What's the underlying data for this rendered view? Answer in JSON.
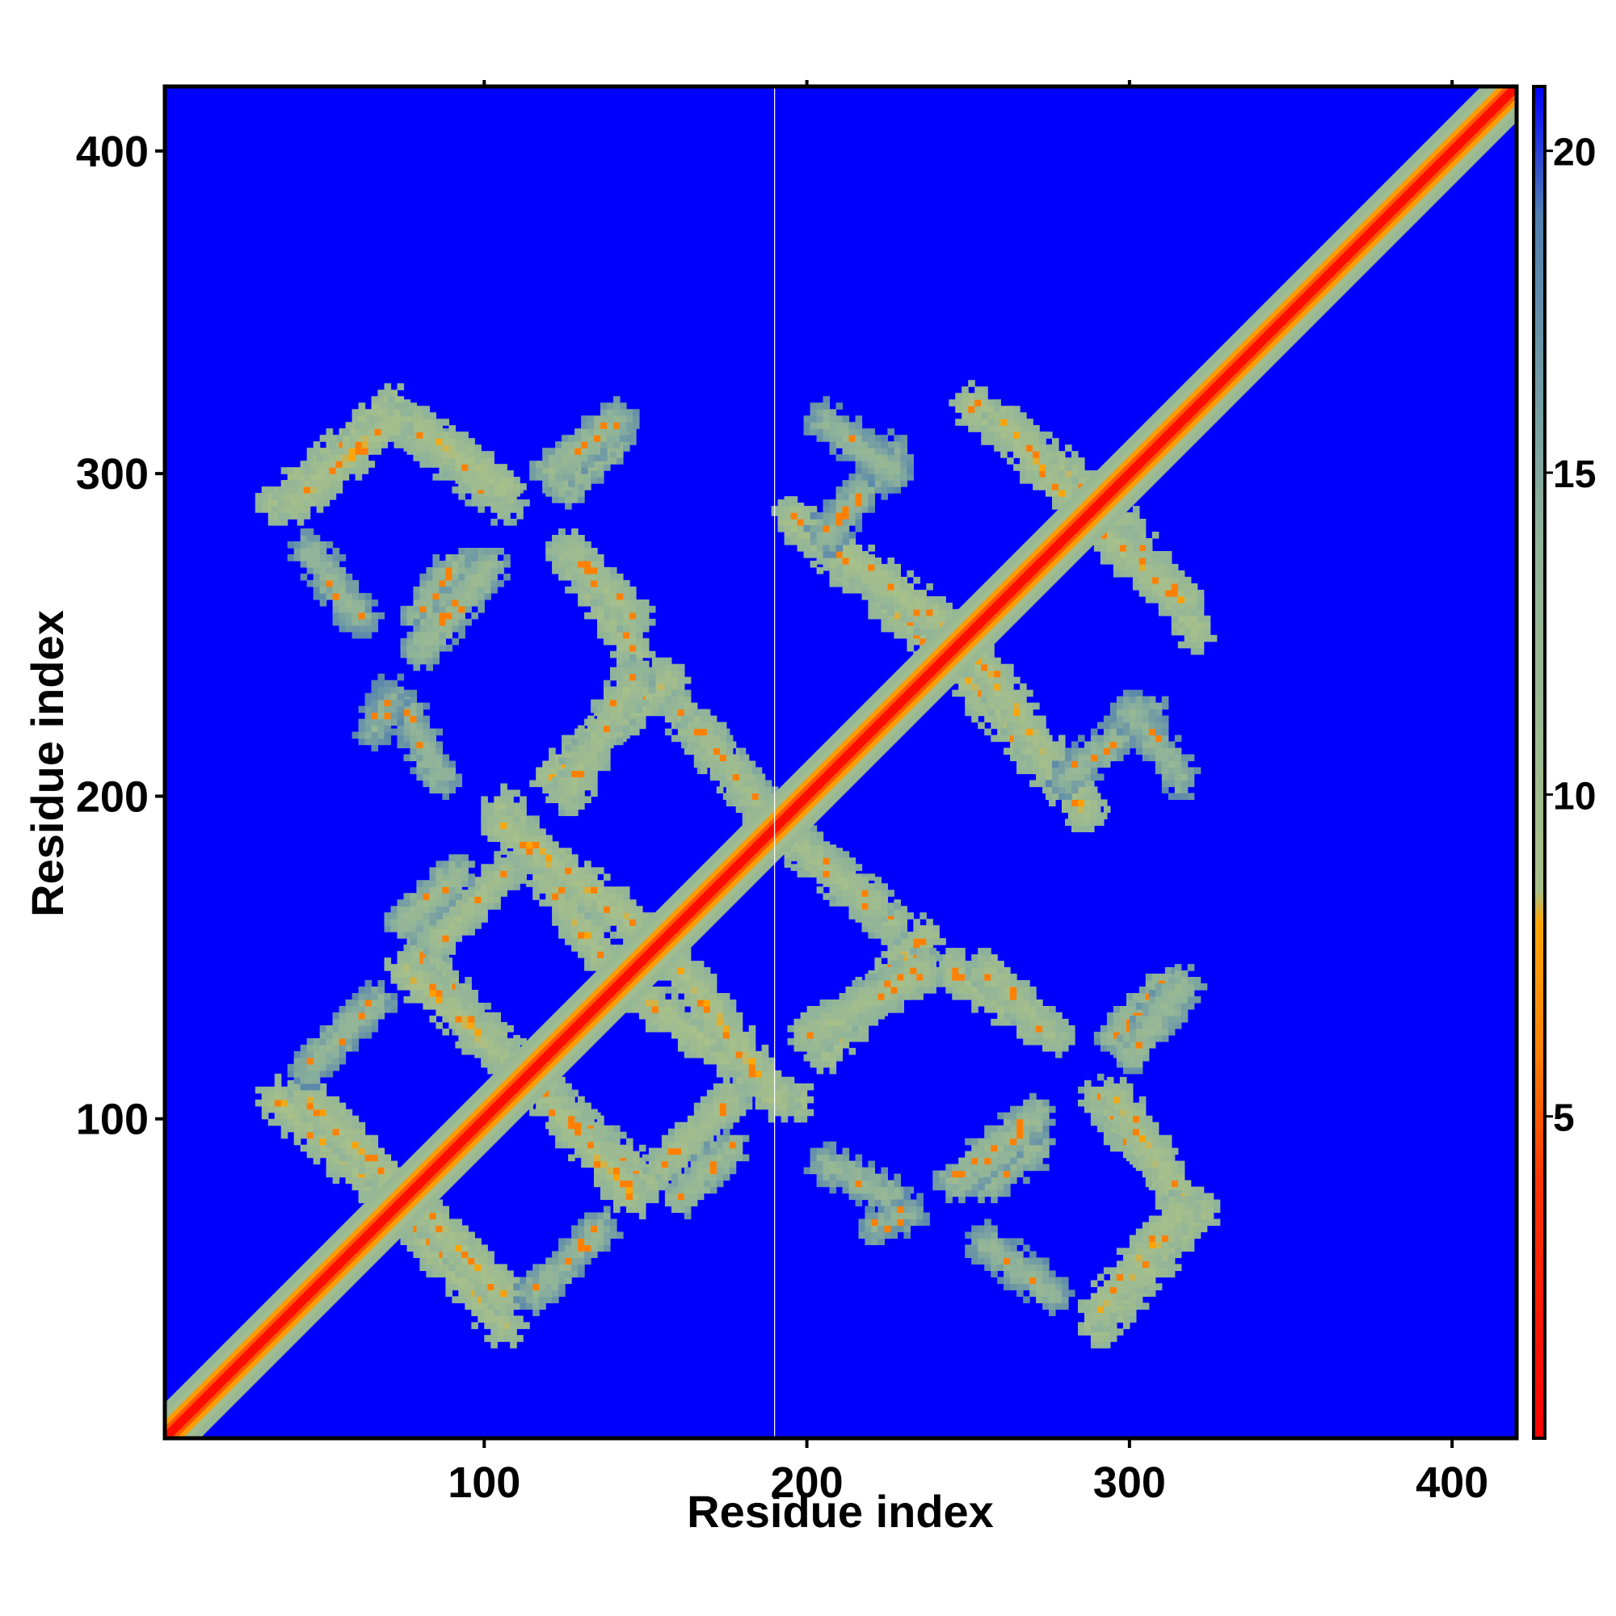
{
  "chart_data": {
    "type": "heatmap",
    "title": "",
    "xlabel": "Residue index",
    "ylabel": "Residue index",
    "xlim": [
      1,
      420
    ],
    "ylim": [
      1,
      420
    ],
    "x_ticks": [
      100,
      200,
      300,
      400
    ],
    "y_ticks": [
      100,
      200,
      300,
      400
    ],
    "x_tick_labels": [
      "100",
      "200",
      "300",
      "400"
    ],
    "y_tick_labels": [
      "100",
      "200",
      "300",
      "400"
    ],
    "colorbar": {
      "min": 0,
      "max": 21,
      "ticks": [
        5,
        10,
        15,
        20
      ],
      "tick_labels": [
        "5",
        "10",
        "15",
        "20"
      ],
      "color_stops": [
        {
          "value": 0,
          "color": "#ff0000"
        },
        {
          "value": 4,
          "color": "#ff3300"
        },
        {
          "value": 6,
          "color": "#ff8000"
        },
        {
          "value": 8,
          "color": "#ffa500"
        },
        {
          "value": 8.5,
          "color": "#a8c08a"
        },
        {
          "value": 14,
          "color": "#8fb39a"
        },
        {
          "value": 19,
          "color": "#4f7fb0"
        },
        {
          "value": 21,
          "color": "#0000ff"
        }
      ]
    },
    "background_value": 21,
    "gap_column": 190,
    "diagonal": {
      "from": 1,
      "to": 420,
      "core_value": 1,
      "halfwidth": 11
    },
    "contact_bands": [
      {
        "x1": 35,
        "y1": 105,
        "x2": 75,
        "y2": 70,
        "value": 9
      },
      {
        "x1": 75,
        "y1": 75,
        "x2": 105,
        "y2": 45,
        "value": 9
      },
      {
        "x1": 95,
        "y1": 130,
        "x2": 130,
        "y2": 95,
        "value": 9
      },
      {
        "x1": 130,
        "y1": 95,
        "x2": 150,
        "y2": 80,
        "value": 10
      },
      {
        "x1": 155,
        "y1": 85,
        "x2": 175,
        "y2": 105,
        "value": 10
      },
      {
        "x1": 75,
        "y1": 145,
        "x2": 115,
        "y2": 110,
        "value": 9
      },
      {
        "x1": 150,
        "y1": 135,
        "x2": 195,
        "y2": 105,
        "value": 9
      },
      {
        "x1": 75,
        "y1": 160,
        "x2": 90,
        "y2": 175,
        "value": 12
      },
      {
        "x1": 105,
        "y1": 190,
        "x2": 145,
        "y2": 160,
        "value": 9
      },
      {
        "x1": 120,
        "y1": 205,
        "x2": 155,
        "y2": 235,
        "value": 9
      },
      {
        "x1": 160,
        "y1": 225,
        "x2": 185,
        "y2": 195,
        "value": 10
      },
      {
        "x1": 195,
        "y1": 185,
        "x2": 220,
        "y2": 165,
        "value": 10
      },
      {
        "x1": 200,
        "y1": 125,
        "x2": 235,
        "y2": 145,
        "value": 9
      },
      {
        "x1": 245,
        "y1": 145,
        "x2": 275,
        "y2": 125,
        "value": 9
      },
      {
        "x1": 295,
        "y1": 125,
        "x2": 310,
        "y2": 140,
        "value": 12
      },
      {
        "x1": 245,
        "y1": 240,
        "x2": 285,
        "y2": 195,
        "value": 9
      },
      {
        "x1": 195,
        "y1": 285,
        "x2": 245,
        "y2": 250,
        "value": 9
      },
      {
        "x1": 250,
        "y1": 320,
        "x2": 285,
        "y2": 295,
        "value": 9
      },
      {
        "x1": 285,
        "y1": 285,
        "x2": 315,
        "y2": 260,
        "value": 9
      },
      {
        "x1": 125,
        "y1": 275,
        "x2": 145,
        "y2": 255,
        "value": 10
      },
      {
        "x1": 125,
        "y1": 200,
        "x2": 145,
        "y2": 235,
        "value": 10
      },
      {
        "x1": 35,
        "y1": 290,
        "x2": 70,
        "y2": 320,
        "value": 9
      },
      {
        "x1": 80,
        "y1": 310,
        "x2": 105,
        "y2": 290,
        "value": 10
      },
      {
        "x1": 120,
        "y1": 300,
        "x2": 140,
        "y2": 315,
        "value": 12
      },
      {
        "x1": 80,
        "y1": 255,
        "x2": 90,
        "y2": 270,
        "value": 12
      },
      {
        "x1": 205,
        "y1": 280,
        "x2": 225,
        "y2": 305,
        "value": 13
      },
      {
        "x1": 295,
        "y1": 105,
        "x2": 315,
        "y2": 75,
        "value": 9
      },
      {
        "x1": 290,
        "y1": 40,
        "x2": 315,
        "y2": 70,
        "value": 9
      },
      {
        "x1": 245,
        "y1": 80,
        "x2": 270,
        "y2": 100,
        "value": 12
      },
      {
        "x1": 205,
        "y1": 85,
        "x2": 225,
        "y2": 75,
        "value": 13
      },
      {
        "x1": 255,
        "y1": 60,
        "x2": 275,
        "y2": 45,
        "value": 13
      },
      {
        "x1": 115,
        "y1": 45,
        "x2": 135,
        "y2": 65,
        "value": 13
      },
      {
        "x1": 300,
        "y1": 225,
        "x2": 315,
        "y2": 205,
        "value": 13
      },
      {
        "x1": 65,
        "y1": 220,
        "x2": 70,
        "y2": 230,
        "value": 14
      }
    ]
  }
}
